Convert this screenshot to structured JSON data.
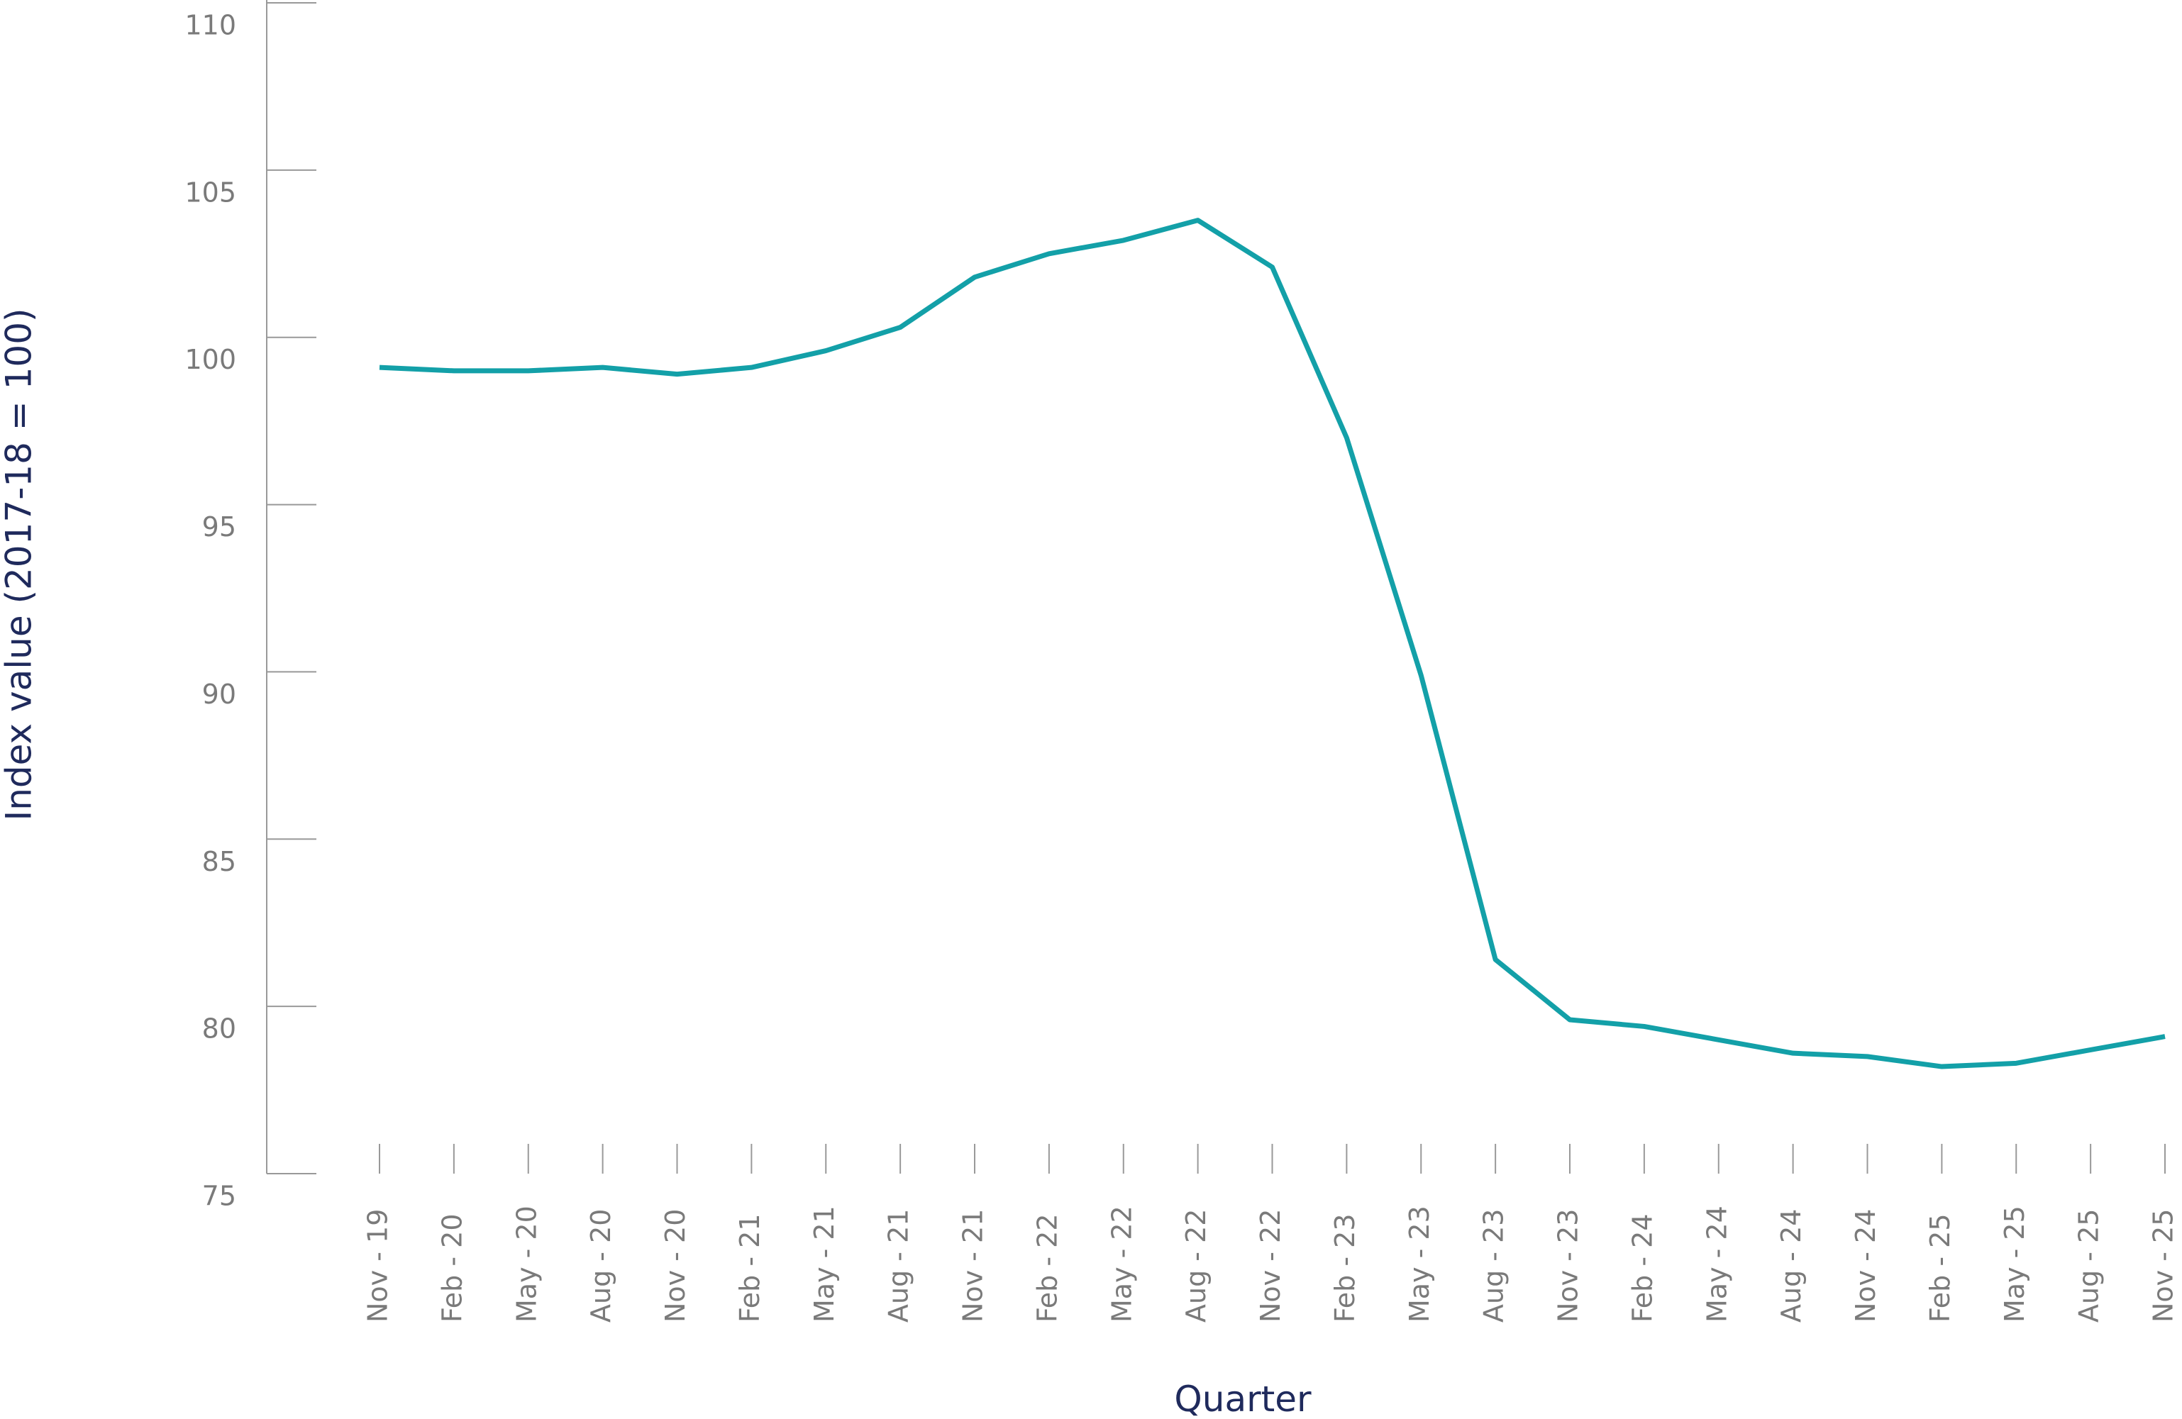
{
  "chart_data": {
    "type": "line",
    "xlabel": "Quarter",
    "ylabel": "Index value (2017-18 = 100)",
    "categories": [
      "Nov - 19",
      "Feb - 20",
      "May - 20",
      "Aug - 20",
      "Nov - 20",
      "Feb - 21",
      "May - 21",
      "Aug - 21",
      "Nov - 21",
      "Feb - 22",
      "May - 22",
      "Aug - 22",
      "Nov - 22",
      "Feb - 23",
      "May - 23",
      "Aug - 23",
      "Nov - 23",
      "Feb - 24",
      "May - 24",
      "Aug - 24",
      "Nov - 24",
      "Feb - 25",
      "May - 25",
      "Aug - 25",
      "Nov - 25"
    ],
    "series": [
      {
        "color": "#13a0a8",
        "values": [
          99.1,
          99.0,
          99.0,
          99.1,
          98.9,
          99.1,
          99.6,
          100.3,
          101.8,
          102.5,
          102.9,
          103.5,
          102.1,
          97.0,
          89.9,
          81.4,
          79.6,
          79.4,
          79.0,
          78.6,
          78.5,
          78.2,
          78.3,
          78.7,
          79.1
        ]
      }
    ],
    "ylim": [
      75,
      110
    ],
    "yticks": [
      75,
      80,
      85,
      90,
      95,
      100,
      105,
      110
    ]
  }
}
